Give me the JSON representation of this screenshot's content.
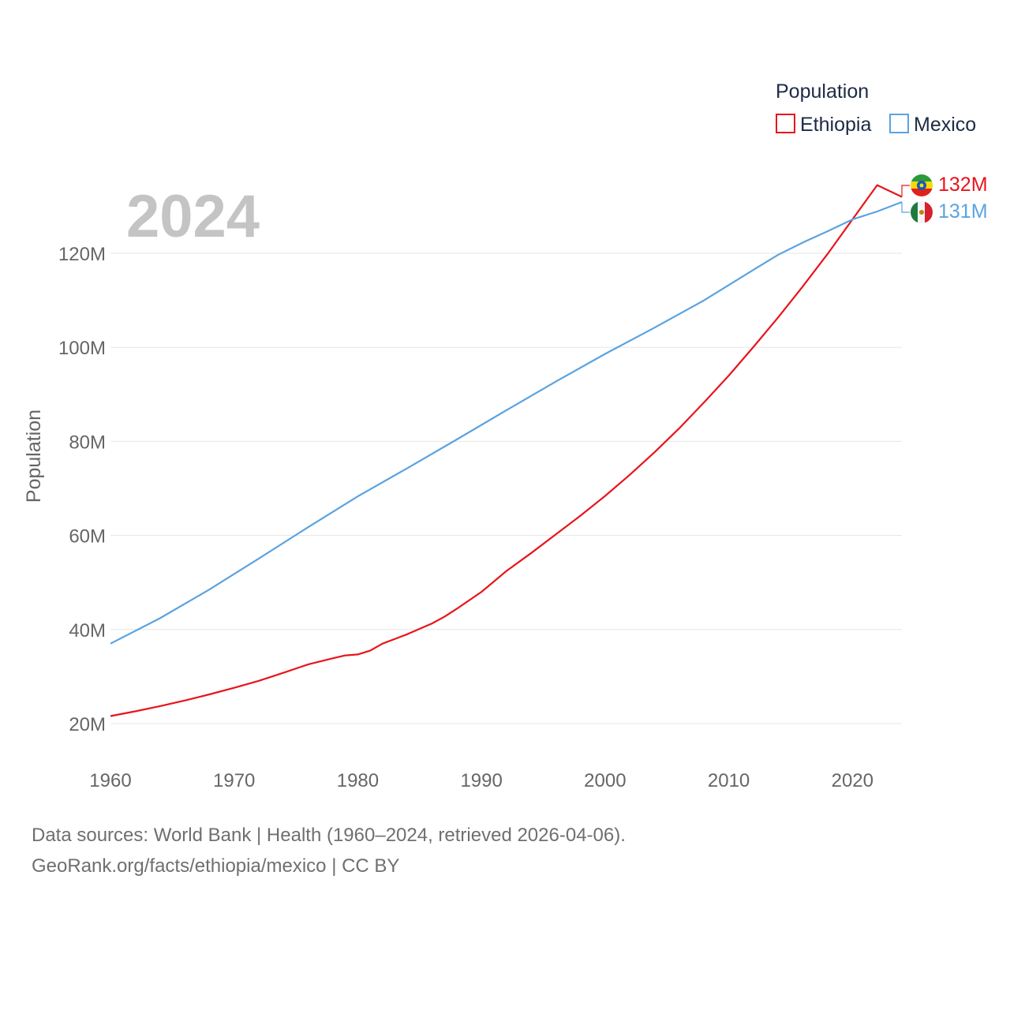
{
  "chart_data": {
    "type": "line",
    "year_label": "2024",
    "ylabel": "Population",
    "legend_title": "Population",
    "xlim": [
      1960,
      2024
    ],
    "ylim": [
      15000000,
      140000000
    ],
    "y_ticks": [
      {
        "value": 20000000,
        "label": "20M"
      },
      {
        "value": 40000000,
        "label": "40M"
      },
      {
        "value": 60000000,
        "label": "60M"
      },
      {
        "value": 80000000,
        "label": "80M"
      },
      {
        "value": 100000000,
        "label": "100M"
      },
      {
        "value": 120000000,
        "label": "120M"
      }
    ],
    "x_ticks": [
      {
        "value": 1960,
        "label": "1960"
      },
      {
        "value": 1970,
        "label": "1970"
      },
      {
        "value": 1980,
        "label": "1980"
      },
      {
        "value": 1990,
        "label": "1990"
      },
      {
        "value": 2000,
        "label": "2000"
      },
      {
        "value": 2010,
        "label": "2010"
      },
      {
        "value": 2020,
        "label": "2020"
      }
    ],
    "series": [
      {
        "name": "Ethiopia",
        "color": "#e8141c",
        "end_label": "132M",
        "flag": "ethiopia-flag",
        "points": [
          [
            1960,
            21.6
          ],
          [
            1962,
            22.6
          ],
          [
            1964,
            23.7
          ],
          [
            1966,
            24.9
          ],
          [
            1968,
            26.2
          ],
          [
            1970,
            27.6
          ],
          [
            1972,
            29.1
          ],
          [
            1974,
            30.8
          ],
          [
            1976,
            32.6
          ],
          [
            1978,
            33.9
          ],
          [
            1979,
            34.5
          ],
          [
            1980,
            34.7
          ],
          [
            1981,
            35.5
          ],
          [
            1982,
            37.0
          ],
          [
            1984,
            39.0
          ],
          [
            1986,
            41.3
          ],
          [
            1987,
            42.7
          ],
          [
            1988,
            44.4
          ],
          [
            1990,
            48.0
          ],
          [
            1992,
            52.4
          ],
          [
            1994,
            56.2
          ],
          [
            1996,
            60.2
          ],
          [
            1998,
            64.2
          ],
          [
            2000,
            68.4
          ],
          [
            2002,
            72.9
          ],
          [
            2004,
            77.7
          ],
          [
            2006,
            82.8
          ],
          [
            2008,
            88.3
          ],
          [
            2010,
            94.0
          ],
          [
            2012,
            100.1
          ],
          [
            2014,
            106.4
          ],
          [
            2016,
            113.0
          ],
          [
            2018,
            119.9
          ],
          [
            2020,
            127.2
          ],
          [
            2022,
            134.5
          ],
          [
            2024,
            132.0
          ]
        ]
      },
      {
        "name": "Mexico",
        "color": "#5ba3e0",
        "end_label": "131M",
        "flag": "mexico-flag",
        "points": [
          [
            1960,
            37.0
          ],
          [
            1964,
            42.4
          ],
          [
            1968,
            48.5
          ],
          [
            1972,
            55.1
          ],
          [
            1976,
            61.8
          ],
          [
            1980,
            68.3
          ],
          [
            1984,
            74.3
          ],
          [
            1988,
            80.4
          ],
          [
            1992,
            86.6
          ],
          [
            1996,
            92.7
          ],
          [
            2000,
            98.6
          ],
          [
            2004,
            104.2
          ],
          [
            2008,
            110.0
          ],
          [
            2012,
            116.5
          ],
          [
            2014,
            119.7
          ],
          [
            2016,
            122.3
          ],
          [
            2018,
            124.7
          ],
          [
            2020,
            127.2
          ],
          [
            2022,
            128.9
          ],
          [
            2024,
            130.9
          ]
        ]
      }
    ]
  },
  "footer": {
    "line1": "Data sources: World Bank | Health (1960–2024, retrieved 2026-04-06).",
    "line2": "GeoRank.org/facts/ethiopia/mexico | CC BY"
  }
}
